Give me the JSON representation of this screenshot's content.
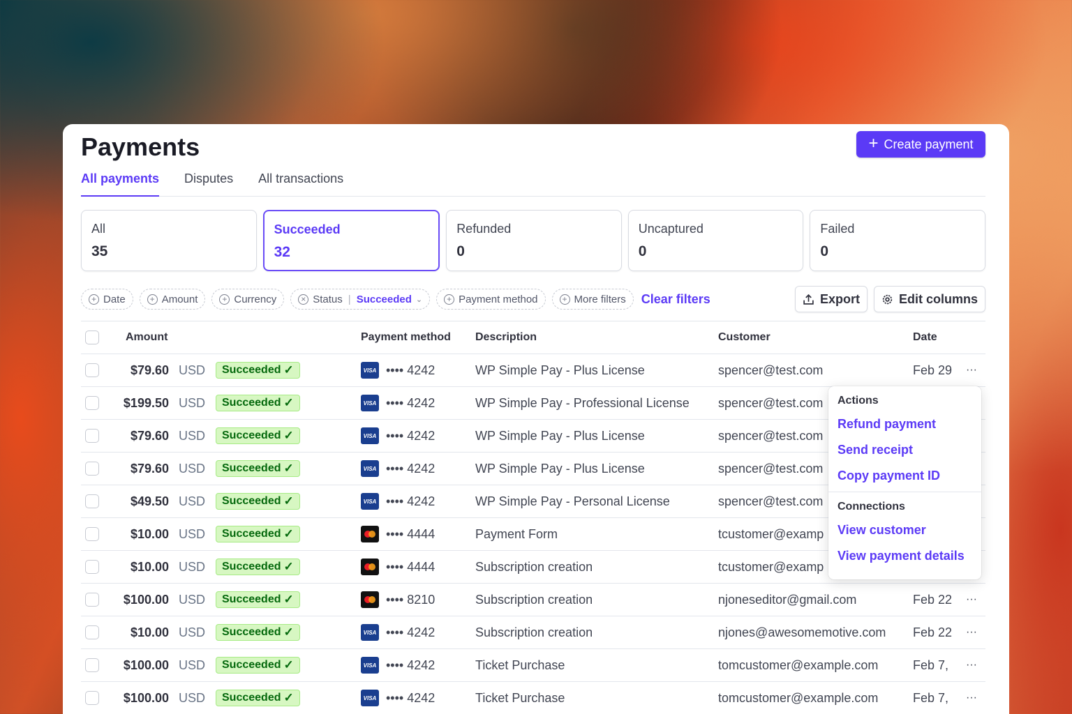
{
  "page": {
    "title": "Payments",
    "create_button": "Create payment"
  },
  "tabs": [
    {
      "label": "All payments",
      "active": true
    },
    {
      "label": "Disputes",
      "active": false
    },
    {
      "label": "All transactions",
      "active": false
    }
  ],
  "status_cards": [
    {
      "label": "All",
      "count": "35"
    },
    {
      "label": "Succeeded",
      "count": "32",
      "active": true
    },
    {
      "label": "Refunded",
      "count": "0"
    },
    {
      "label": "Uncaptured",
      "count": "0"
    },
    {
      "label": "Failed",
      "count": "0"
    }
  ],
  "filters": {
    "date": "Date",
    "amount": "Amount",
    "currency": "Currency",
    "status_label": "Status",
    "status_value": "Succeeded",
    "payment_method": "Payment method",
    "more_filters": "More filters",
    "clear_filters": "Clear filters",
    "export": "Export",
    "edit_columns": "Edit columns"
  },
  "table": {
    "headers": {
      "amount": "Amount",
      "payment_method": "Payment method",
      "description": "Description",
      "customer": "Customer",
      "date": "Date"
    },
    "rows": [
      {
        "amount": "$79.60",
        "currency": "USD",
        "status": "Succeeded",
        "brand": "visa",
        "last4": "•••• 4242",
        "description": "WP Simple Pay - Plus License",
        "customer": "spencer@test.com",
        "date": "Feb 29"
      },
      {
        "amount": "$199.50",
        "currency": "USD",
        "status": "Succeeded",
        "brand": "visa",
        "last4": "•••• 4242",
        "description": "WP Simple Pay - Professional License",
        "customer": "spencer@test.com",
        "date": ""
      },
      {
        "amount": "$79.60",
        "currency": "USD",
        "status": "Succeeded",
        "brand": "visa",
        "last4": "•••• 4242",
        "description": "WP Simple Pay - Plus License",
        "customer": "spencer@test.com",
        "date": ""
      },
      {
        "amount": "$79.60",
        "currency": "USD",
        "status": "Succeeded",
        "brand": "visa",
        "last4": "•••• 4242",
        "description": "WP Simple Pay - Plus License",
        "customer": "spencer@test.com",
        "date": ""
      },
      {
        "amount": "$49.50",
        "currency": "USD",
        "status": "Succeeded",
        "brand": "visa",
        "last4": "•••• 4242",
        "description": "WP Simple Pay - Personal License",
        "customer": "spencer@test.com",
        "date": ""
      },
      {
        "amount": "$10.00",
        "currency": "USD",
        "status": "Succeeded",
        "brand": "mastercard",
        "last4": "•••• 4444",
        "description": "Payment Form",
        "customer": "tcustomer@examp",
        "date": ""
      },
      {
        "amount": "$10.00",
        "currency": "USD",
        "status": "Succeeded",
        "brand": "mastercard",
        "last4": "•••• 4444",
        "description": "Subscription creation",
        "customer": "tcustomer@examp",
        "date": ""
      },
      {
        "amount": "$100.00",
        "currency": "USD",
        "status": "Succeeded",
        "brand": "mastercard",
        "last4": "•••• 8210",
        "description": "Subscription creation",
        "customer": "njoneseditor@gmail.com",
        "date": "Feb 22"
      },
      {
        "amount": "$10.00",
        "currency": "USD",
        "status": "Succeeded",
        "brand": "visa",
        "last4": "•••• 4242",
        "description": "Subscription creation",
        "customer": "njones@awesomemotive.com",
        "date": "Feb 22"
      },
      {
        "amount": "$100.00",
        "currency": "USD",
        "status": "Succeeded",
        "brand": "visa",
        "last4": "•••• 4242",
        "description": "Ticket Purchase",
        "customer": "tomcustomer@example.com",
        "date": "Feb 7,"
      },
      {
        "amount": "$100.00",
        "currency": "USD",
        "status": "Succeeded",
        "brand": "visa",
        "last4": "•••• 4242",
        "description": "Ticket Purchase",
        "customer": "tomcustomer@example.com",
        "date": "Feb 7,"
      }
    ],
    "row_more_label": "···",
    "visa_label": "VISA"
  },
  "actions_menu": {
    "actions_heading": "Actions",
    "refund": "Refund payment",
    "send_receipt": "Send receipt",
    "copy_id": "Copy payment ID",
    "connections_heading": "Connections",
    "view_customer": "View customer",
    "view_details": "View payment details"
  },
  "colors": {
    "accent": "#5b3af6",
    "success_bg": "#d7f7c2",
    "success_text": "#05690d",
    "visa": "#1a3e8f"
  }
}
